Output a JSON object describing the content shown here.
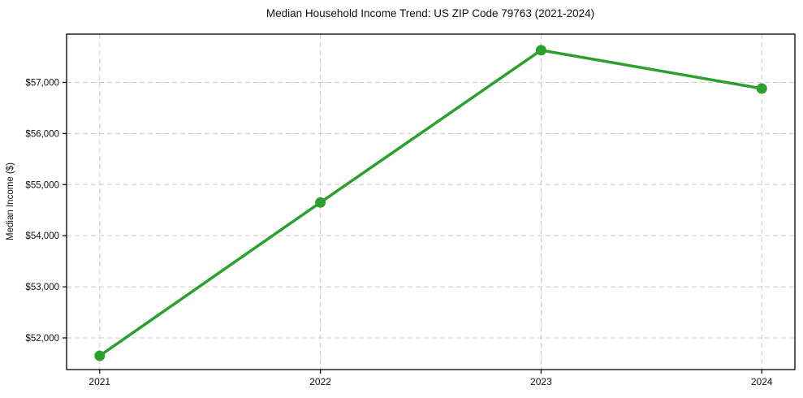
{
  "figure": {
    "background": "#ffffff"
  },
  "chart_data": {
    "type": "line",
    "title": "Median Household Income Trend: US ZIP Code 79763 (2021-2024)",
    "xlabel": "",
    "ylabel": "Median Income ($)",
    "x": [
      2021,
      2022,
      2023,
      2024
    ],
    "series": [
      {
        "color": "#2ca02c",
        "marker": "circle",
        "values": [
          51650,
          54650,
          57630,
          56880
        ]
      }
    ],
    "xticks": [
      2021,
      2022,
      2023,
      2024
    ],
    "xtick_labels": [
      "2021",
      "2022",
      "2023",
      "2024"
    ],
    "yticks": [
      52000,
      53000,
      54000,
      55000,
      56000,
      57000
    ],
    "ytick_labels": [
      "$52,000",
      "$53,000",
      "$54,000",
      "$55,000",
      "$56,000",
      "$57,000"
    ],
    "xlim": [
      2020.85,
      2024.15
    ],
    "ylim": [
      51380,
      57945
    ],
    "grid": true,
    "grid_style": "dashed",
    "grid_color": "#cccccc",
    "axis_color": "#000000",
    "text_color": "#111111",
    "legend": "none"
  }
}
